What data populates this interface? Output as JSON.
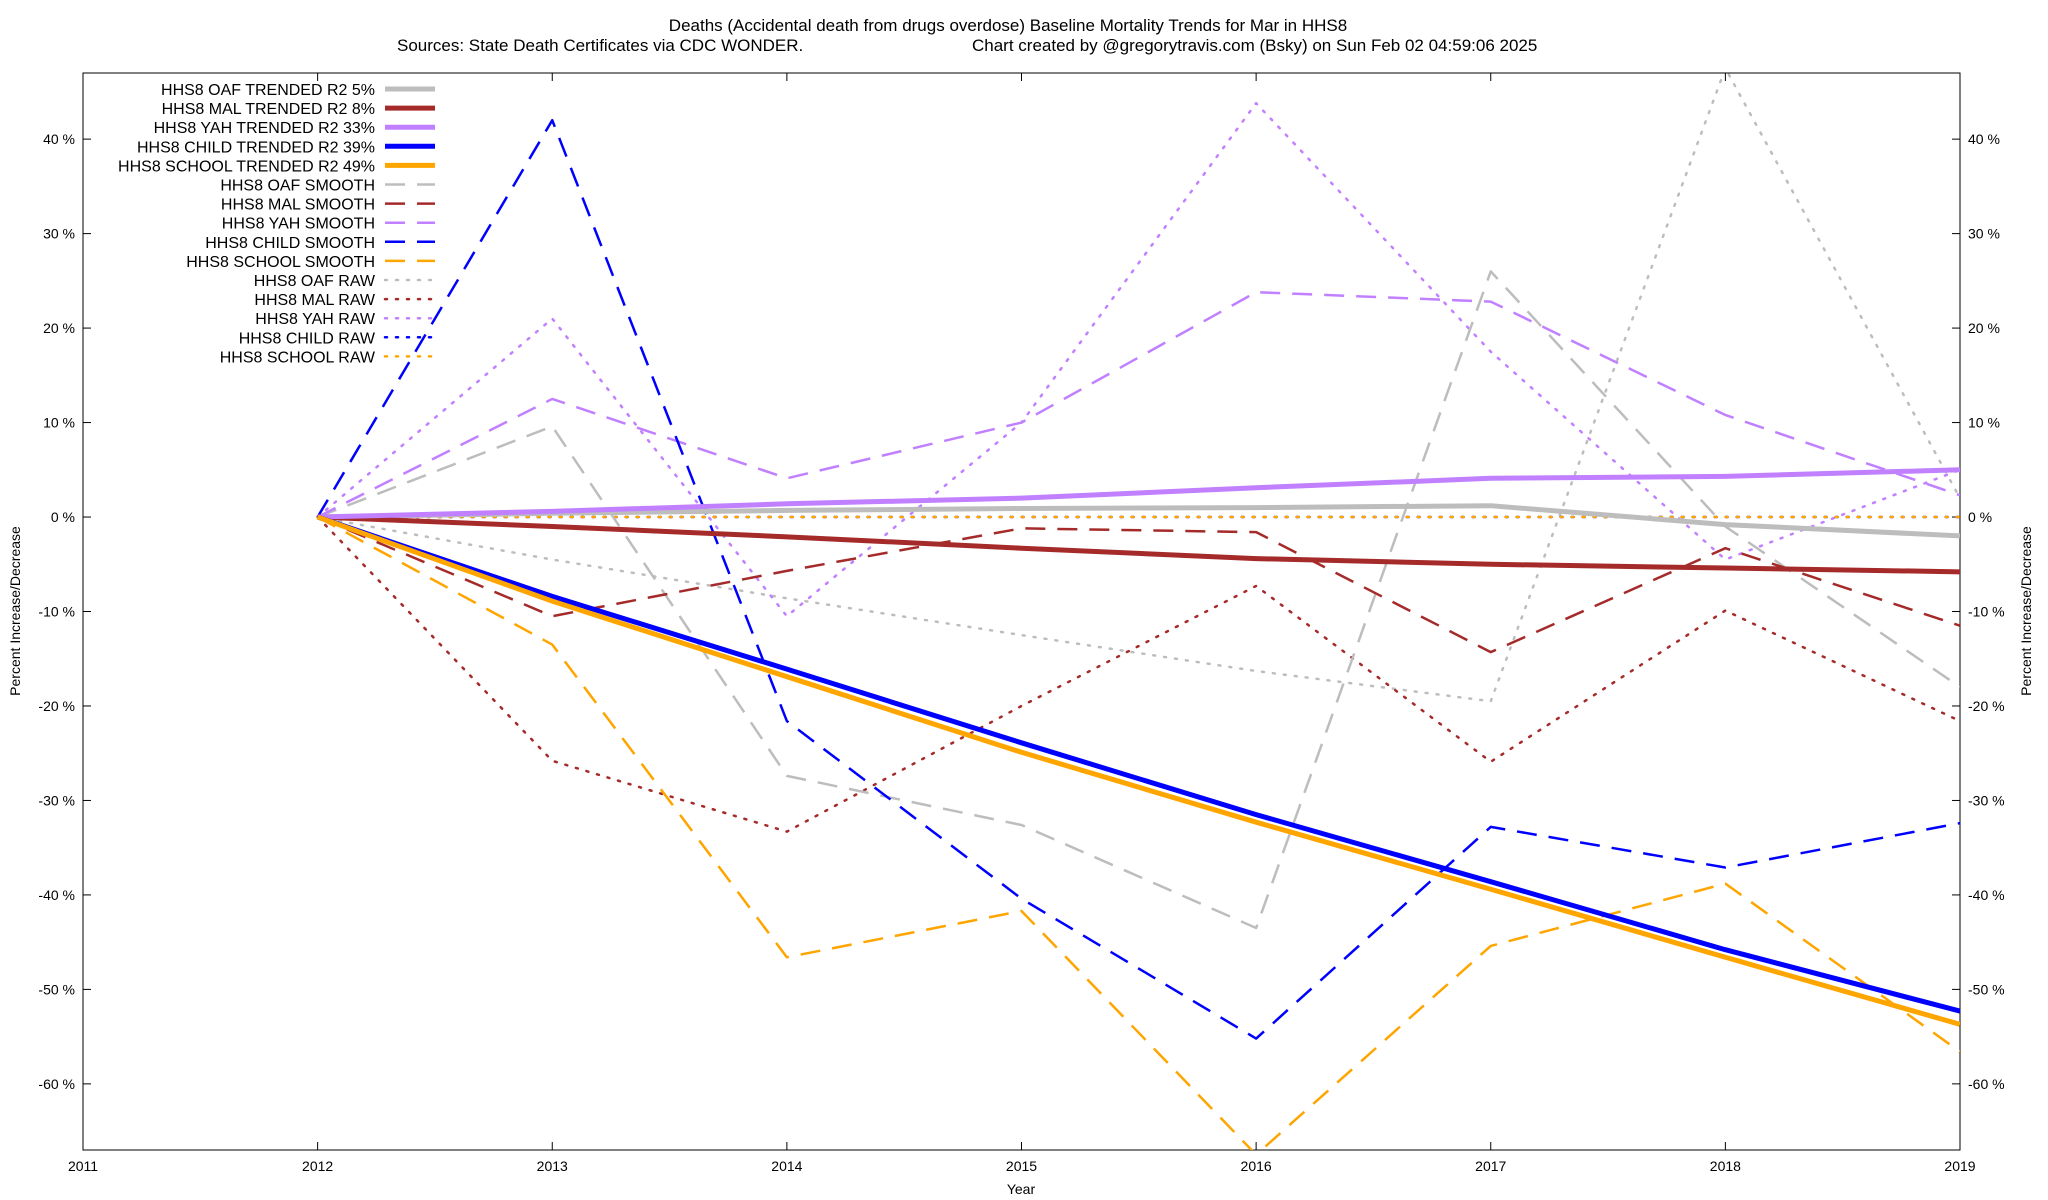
{
  "chart_data": {
    "type": "line",
    "title": "Deaths (Accidental death from drugs overdose)  Baseline Mortality Trends for Mar in HHS8",
    "subtitle_left": "Sources: State Death Certificates via CDC WONDER.",
    "subtitle_right": "Chart created by @gregorytravis.com (Bsky) on Sun Feb 02 04:59:06 2025",
    "xlabel": "Year",
    "ylabel": "Percent Increase/Decrease",
    "xlim": [
      2011,
      2019
    ],
    "ylim": [
      -67,
      47
    ],
    "x_ticks": [
      2011,
      2012,
      2013,
      2014,
      2015,
      2016,
      2017,
      2018,
      2019
    ],
    "x_tick_labels": [
      "2011",
      "2012",
      "2013",
      "2014",
      "2015",
      "2016",
      "2017",
      "2018",
      "2019"
    ],
    "y_ticks": [
      40,
      30,
      20,
      10,
      0,
      -10,
      -20,
      -30,
      -40,
      -50,
      -60
    ],
    "y_tick_labels": [
      "40 %",
      "30 %",
      "20 %",
      "10 %",
      "0 %",
      "-10 %",
      "-20 %",
      "-30 %",
      "-40 %",
      "-50 %",
      "-60 %"
    ],
    "grid": false,
    "legend_position": "top-left",
    "x": [
      2012,
      2013,
      2014,
      2015,
      2016,
      2017,
      2018,
      2019
    ],
    "series": [
      {
        "name": "HHS8 OAF TRENDED R2  5%",
        "style": "trended",
        "color": "#bdbdbd",
        "values": [
          0,
          0.4,
          0.7,
          0.9,
          1.0,
          1.2,
          -0.8,
          -2.0
        ]
      },
      {
        "name": "HHS8 MAL TRENDED R2  8%",
        "style": "trended",
        "color": "#a52a2a",
        "values": [
          0,
          -1.0,
          -2.1,
          -3.3,
          -4.4,
          -5.0,
          -5.4,
          -5.8
        ]
      },
      {
        "name": "HHS8 YAH TRENDED R2  33%",
        "style": "trended",
        "color": "#c080ff",
        "values": [
          0,
          0.6,
          1.4,
          2.0,
          3.1,
          4.1,
          4.3,
          5.0
        ]
      },
      {
        "name": "HHS8 CHILD TRENDED R2  39%",
        "style": "trended",
        "color": "#0000ff",
        "values": [
          0,
          -8.4,
          -16.1,
          -23.9,
          -31.5,
          -38.6,
          -45.8,
          -52.3
        ]
      },
      {
        "name": "HHS8 SCHOOL TRENDED R2  49%",
        "style": "trended",
        "color": "#ffa500",
        "values": [
          0,
          -8.9,
          -16.9,
          -24.9,
          -32.3,
          -39.4,
          -46.6,
          -53.7
        ]
      },
      {
        "name": "HHS8 OAF SMOOTH",
        "style": "smooth",
        "color": "#bdbdbd",
        "values": [
          0,
          9.6,
          -27.4,
          -32.6,
          -43.5,
          26.0,
          -1.0,
          -18.0
        ]
      },
      {
        "name": "HHS8 MAL SMOOTH",
        "style": "smooth",
        "color": "#a52a2a",
        "values": [
          0,
          -10.5,
          -5.7,
          -1.2,
          -1.6,
          -14.3,
          -3.3,
          -11.5
        ]
      },
      {
        "name": "HHS8 YAH SMOOTH",
        "style": "smooth",
        "color": "#c080ff",
        "values": [
          0,
          12.5,
          4.1,
          10.0,
          23.8,
          22.8,
          10.8,
          2.3
        ]
      },
      {
        "name": "HHS8 CHILD SMOOTH",
        "style": "smooth",
        "color": "#0000ff",
        "values": [
          0,
          42.0,
          -21.6,
          -40.4,
          -55.2,
          -32.8,
          -37.1,
          -32.4
        ]
      },
      {
        "name": "HHS8 SCHOOL SMOOTH",
        "style": "smooth",
        "color": "#ffa500",
        "values": [
          0,
          -13.5,
          -46.6,
          -41.7,
          -67.5,
          -45.4,
          -38.8,
          -56.6
        ]
      },
      {
        "name": "HHS8 OAF RAW",
        "style": "raw",
        "color": "#bdbdbd",
        "values": [
          0,
          -4.5,
          -8.6,
          -12.5,
          -16.3,
          -19.5,
          47.5,
          2.0
        ]
      },
      {
        "name": "HHS8 MAL RAW",
        "style": "raw",
        "color": "#a52a2a",
        "values": [
          0,
          -25.8,
          -33.3,
          -20.0,
          -7.3,
          -25.9,
          -9.9,
          -21.6
        ]
      },
      {
        "name": "HHS8 YAH RAW",
        "style": "raw",
        "color": "#c080ff",
        "values": [
          0,
          21.0,
          -10.5,
          10.0,
          43.8,
          17.5,
          -4.5,
          5.0
        ]
      },
      {
        "name": "HHS8 CHILD RAW",
        "style": "raw",
        "color": "#0000ff",
        "values": [
          0,
          0,
          0,
          0,
          0,
          0,
          0,
          0
        ]
      },
      {
        "name": "HHS8 SCHOOL RAW",
        "style": "raw",
        "color": "#ffa500",
        "values": [
          0,
          0,
          0,
          0,
          0,
          0,
          0,
          0
        ]
      }
    ]
  }
}
